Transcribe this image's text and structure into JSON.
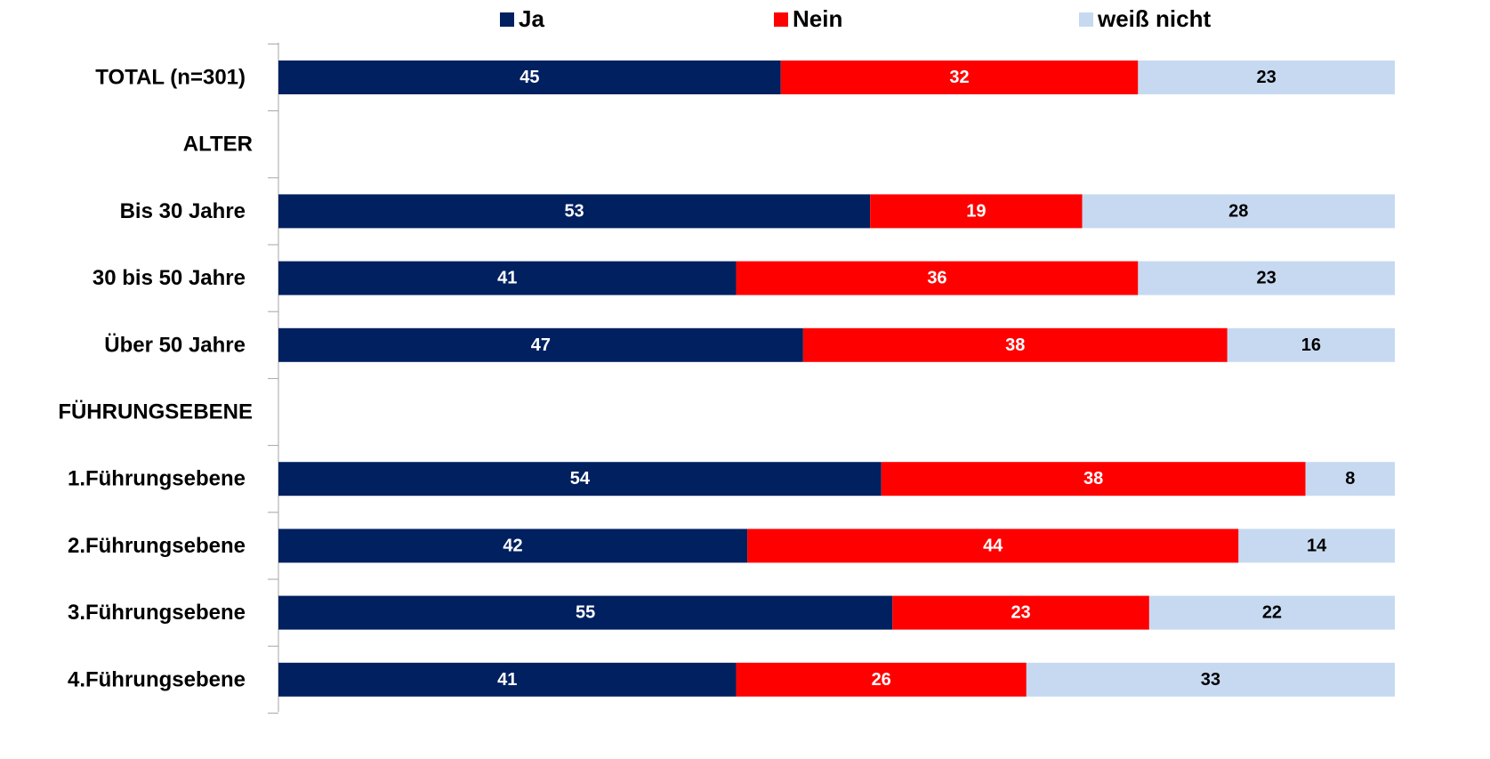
{
  "chart_data": {
    "type": "bar",
    "orientation": "horizontal",
    "stacked": true,
    "percent_stacked": true,
    "categories": [
      "TOTAL (n=301)",
      "ALTER",
      "Bis 30 Jahre",
      "30 bis 50 Jahre",
      "Über 50 Jahre",
      "FÜHRUNGSEBENE",
      "1.Führungsebene",
      "2.Führungsebene",
      "3.Führungsebene",
      "4.Führungsebene"
    ],
    "series": [
      {
        "name": "Ja",
        "color": "#002060",
        "label_color": "#ffffff",
        "values": [
          45,
          null,
          53,
          41,
          47,
          null,
          54,
          42,
          55,
          41
        ]
      },
      {
        "name": "Nein",
        "color": "#ff0000",
        "label_color": "#ffffff",
        "values": [
          32,
          null,
          19,
          36,
          38,
          null,
          38,
          44,
          23,
          26
        ]
      },
      {
        "name": "weiß nicht",
        "color": "#c6d9f1",
        "label_color": "#000000",
        "values": [
          23,
          null,
          28,
          23,
          16,
          null,
          8,
          14,
          22,
          33
        ]
      }
    ],
    "legend": "top",
    "grid": false,
    "xlim": [
      0,
      100
    ]
  }
}
